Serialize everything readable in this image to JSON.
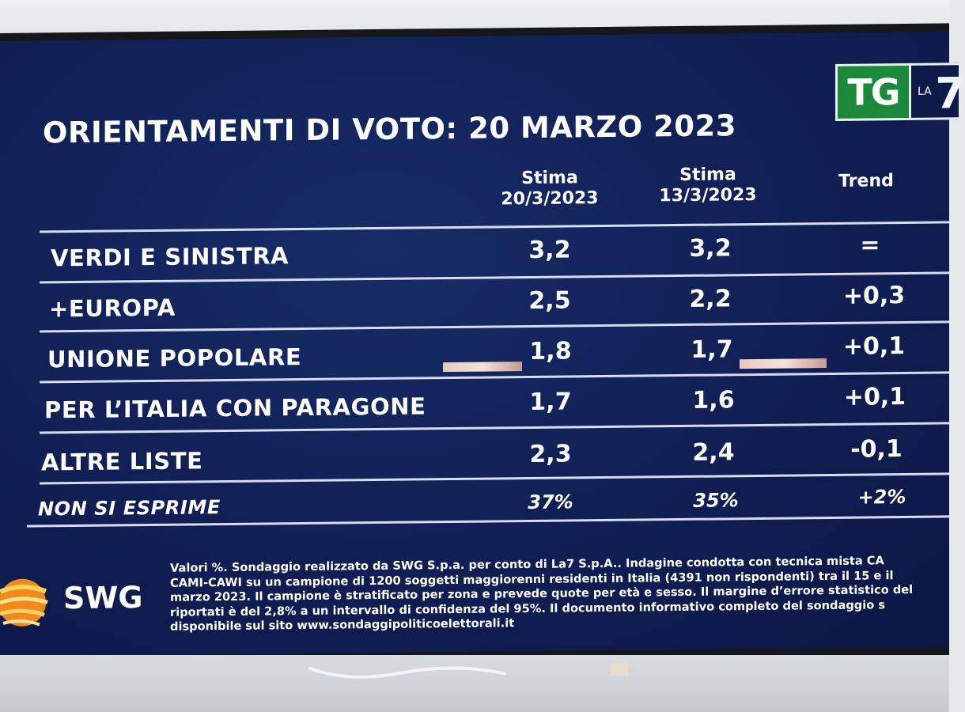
{
  "title": "ORIENTAMENTI DI VOTO: 20 MARZO 2023",
  "logo": {
    "tg": "TG",
    "la": "LA",
    "seven": "7"
  },
  "headers": {
    "col1_line1": "Stima",
    "col1_line2": "20/3/2023",
    "col2_line1": "Stima",
    "col2_line2": "13/3/2023",
    "col3": "Trend"
  },
  "rows": [
    {
      "label": "VERDI E SINISTRA",
      "current": "3,2",
      "previous": "3,2",
      "trend": "="
    },
    {
      "label": "+EUROPA",
      "current": "2,5",
      "previous": "2,2",
      "trend": "+0,3"
    },
    {
      "label": "UNIONE POPOLARE",
      "current": "1,8",
      "previous": "1,7",
      "trend": "+0,1"
    },
    {
      "label": "PER L’ITALIA CON PARAGONE",
      "current": "1,7",
      "previous": "1,6",
      "trend": "+0,1"
    },
    {
      "label": "ALTRE LISTE",
      "current": "2,3",
      "previous": "2,4",
      "trend": "-0,1"
    },
    {
      "label": "NON SI ESPRIME",
      "current": "37%",
      "previous": "35%",
      "trend": "+2%"
    }
  ],
  "swg": {
    "text": "SWG"
  },
  "footnote": [
    "Valori %. Sondaggio realizzato da SWG S.p.a. per conto di La7 S.p.A.. Indagine condotta con tecnica mista CA",
    "CAMI-CAWI su un campione di 1200 soggetti maggiorenni residenti in Italia (4391 non rispondenti) tra il 15 e il",
    "marzo 2023. Il campione è stratificato per zona e prevede quote per età e sesso. Il margine d’errore statistico del",
    "riportati è del 2,8% a un intervallo di confidenza del 95%. Il documento informativo completo del sondaggio s",
    "disponibile sul sito www.sondaggipoliticoelettorali.it"
  ],
  "colors": {
    "screen_bg": "#101f55",
    "tg_green": "#1a8a3a",
    "text": "#ffffff",
    "separator": "#d6dcea"
  }
}
